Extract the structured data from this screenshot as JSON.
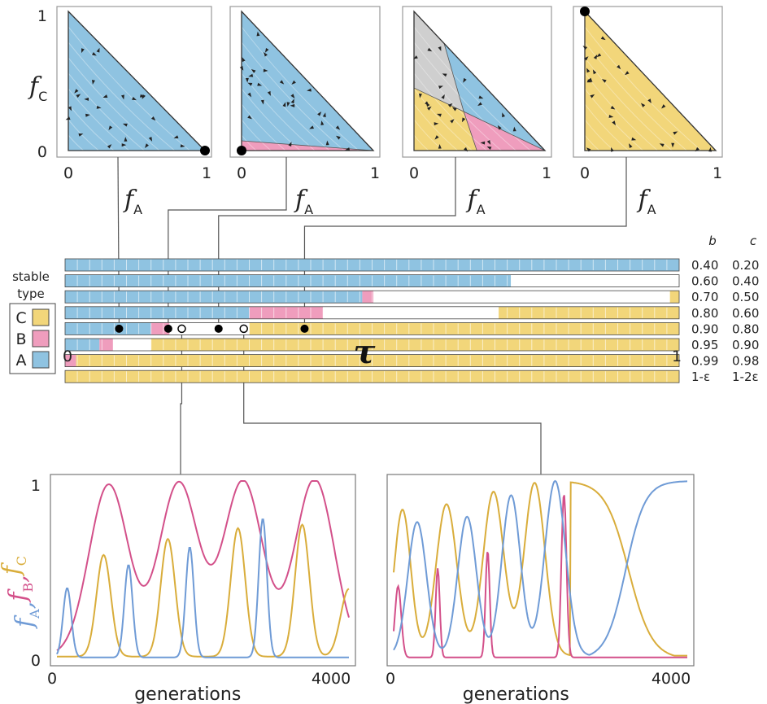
{
  "colors": {
    "A": "#8fc3e1",
    "B": "#ef9dbd",
    "C": "#f2d67a",
    "gray": "#cfcfcf",
    "lineA": "#6f9bd6",
    "lineB": "#d3508a",
    "lineC": "#d9ad3b"
  },
  "chart_data": [
    {
      "type": "ternary-panels",
      "panels": [
        {
          "x_tick_min": "0",
          "x_tick_max": "1",
          "y_tick_min": "0",
          "y_tick_max": "1",
          "xlabel": "f",
          "xlabel_sub": "A",
          "ylabel": "f",
          "ylabel_sub": "C",
          "regions": [
            "A"
          ],
          "fixed_point": [
            1,
            0
          ]
        },
        {
          "x_tick_min": "0",
          "x_tick_max": "1",
          "xlabel": "f",
          "xlabel_sub": "A",
          "regions": [
            "A",
            "B"
          ],
          "fixed_point": [
            0,
            0
          ]
        },
        {
          "x_tick_min": "0",
          "x_tick_max": "1",
          "xlabel": "f",
          "xlabel_sub": "A",
          "regions": [
            "gray",
            "A",
            "C",
            "B"
          ],
          "fixed_point": null
        },
        {
          "x_tick_min": "0",
          "x_tick_max": "1",
          "xlabel": "f",
          "xlabel_sub": "A",
          "regions": [
            "C"
          ],
          "fixed_point": [
            0,
            1
          ]
        }
      ]
    },
    {
      "type": "heatmap",
      "xlabel": "τ",
      "x_tick_min": "0",
      "x_tick_max": "1",
      "legend_title": "stable type",
      "legend": [
        "C",
        "B",
        "A"
      ],
      "column_headers": {
        "b": "b",
        "c": "c"
      },
      "rows": [
        {
          "b": "0.40",
          "c": "0.20",
          "segments": [
            [
              0,
              1,
              "A"
            ]
          ]
        },
        {
          "b": "0.60",
          "c": "0.40",
          "segments": [
            [
              0,
              0.726,
              "A"
            ],
            [
              0.726,
              1,
              "none"
            ]
          ]
        },
        {
          "b": "0.70",
          "c": "0.50",
          "segments": [
            [
              0,
              0.484,
              "A"
            ],
            [
              0.484,
              0.502,
              "B"
            ],
            [
              0.502,
              0.985,
              "none"
            ],
            [
              0.985,
              1,
              "C"
            ]
          ]
        },
        {
          "b": "0.80",
          "c": "0.60",
          "segments": [
            [
              0,
              0.3,
              "A"
            ],
            [
              0.3,
              0.42,
              "B"
            ],
            [
              0.42,
              0.706,
              "none"
            ],
            [
              0.706,
              1,
              "C"
            ]
          ]
        },
        {
          "b": "0.90",
          "c": "0.80",
          "segments": [
            [
              0,
              0.14,
              "A"
            ],
            [
              0.14,
              0.17,
              "B"
            ],
            [
              0.17,
              0.3,
              "none"
            ],
            [
              0.3,
              1,
              "C"
            ]
          ]
        },
        {
          "b": "0.95",
          "c": "0.90",
          "segments": [
            [
              0,
              0.056,
              "A"
            ],
            [
              0.056,
              0.078,
              "B"
            ],
            [
              0.078,
              0.14,
              "none"
            ],
            [
              0.14,
              1,
              "C"
            ]
          ]
        },
        {
          "b": "0.99",
          "c": "0.98",
          "segments": [
            [
              0,
              0.018,
              "B"
            ],
            [
              0.018,
              1,
              "C"
            ]
          ]
        },
        {
          "b": "1-ε",
          "c": "1-2ε",
          "segments": [
            [
              0,
              1,
              "C"
            ]
          ]
        }
      ],
      "markers_row": "0.90",
      "filled_markers_tau": [
        0.088,
        0.168,
        0.25,
        0.39
      ],
      "open_markers_tau": [
        0.19,
        0.291
      ]
    },
    {
      "type": "line",
      "xlabel": "generations",
      "x_tick_min": "0",
      "x_tick_max": "4000",
      "y_tick_min": "0",
      "y_tick_max": "1",
      "ylabel": [
        "f",
        "A",
        ",",
        "f",
        "B",
        ",",
        "f",
        "C"
      ],
      "xlim": [
        0,
        4000
      ],
      "ylim": [
        0,
        1
      ],
      "series_shape": "heteroclinic-oscillation",
      "peaks": {
        "B": [
          0.96,
          0.97,
          0.98,
          0.99
        ],
        "C": [
          0.57,
          0.66,
          0.72,
          0.74
        ],
        "A": [
          0.39,
          0.52,
          0.62,
          0.78
        ]
      }
    },
    {
      "type": "line",
      "xlabel": "generations",
      "x_tick_min": "0",
      "x_tick_max": "4000",
      "xlim": [
        0,
        4000
      ],
      "ylim": [
        0,
        1
      ],
      "series_shape": "damped-oscillation-to-A"
    }
  ]
}
